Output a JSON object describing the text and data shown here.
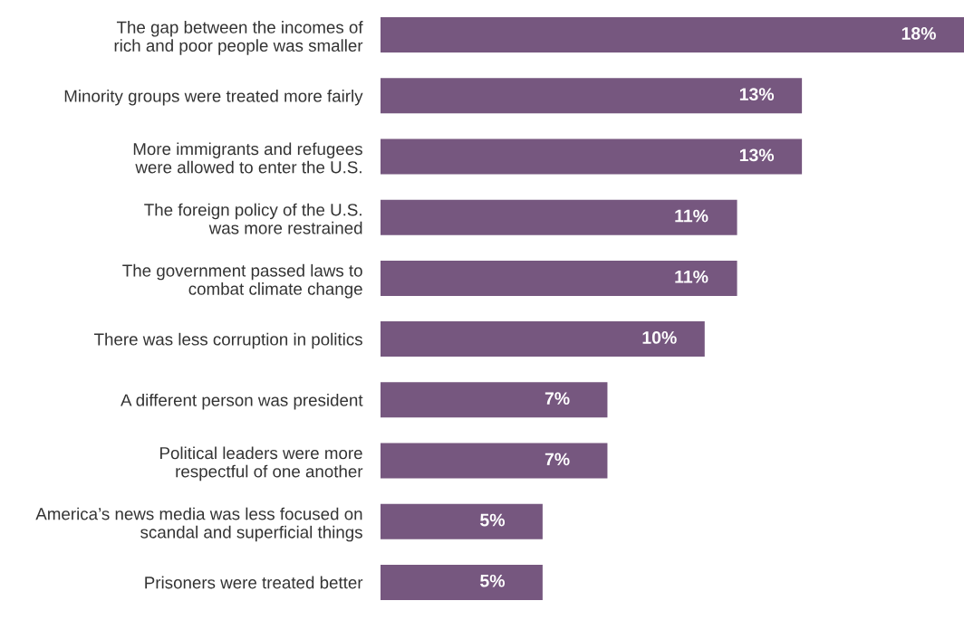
{
  "chart_data": {
    "type": "bar",
    "orientation": "horizontal",
    "categories": [
      "The gap between the incomes of\nrich and poor people was smaller",
      "Minority groups were treated more fairly",
      "More immigrants and refugees\nwere allowed to enter the U.S.",
      "The foreign policy of the U.S.\nwas more restrained",
      "The government passed laws to\ncombat climate change",
      "There was less corruption in politics",
      "A different person was president",
      "Political leaders were more\nrespectful of one another",
      "America’s news media was less focused on\nscandal and superficial things",
      "Prisoners were treated better"
    ],
    "values": [
      18,
      13,
      13,
      11,
      11,
      10,
      7,
      7,
      5,
      5
    ],
    "value_labels": [
      "18%",
      "13%",
      "13%",
      "11%",
      "11%",
      "10%",
      "7%",
      "7%",
      "5%",
      "5%"
    ],
    "color": "#76577f",
    "xlim": [
      0,
      18
    ],
    "tick_labels": "y",
    "grid": false,
    "legend": false
  }
}
